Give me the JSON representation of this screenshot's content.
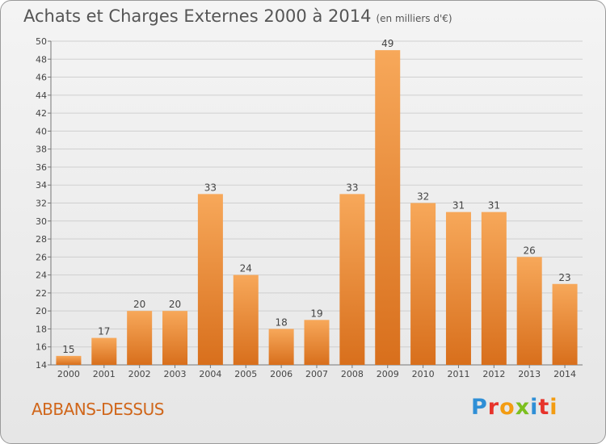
{
  "header": {
    "title": "Achats et Charges Externes 2000 à 2014",
    "subtitle": "(en milliers d'€)"
  },
  "footer": {
    "location": "ABBANS-DESSUS",
    "logo_letters": [
      "P",
      "r",
      "o",
      "x",
      "i",
      "t",
      "i"
    ],
    "logo_colors": [
      "#2f8fd6",
      "#e7332b",
      "#f39c12",
      "#7cbf1e",
      "#2f8fd6",
      "#e7332b",
      "#f39c12"
    ]
  },
  "chart_data": {
    "type": "bar",
    "categories": [
      "2000",
      "2001",
      "2002",
      "2003",
      "2004",
      "2005",
      "2006",
      "2007",
      "2008",
      "2009",
      "2010",
      "2011",
      "2012",
      "2013",
      "2014"
    ],
    "values": [
      15,
      17,
      20,
      20,
      33,
      24,
      18,
      19,
      33,
      49,
      32,
      31,
      31,
      26,
      23
    ],
    "data_labels": [
      "15",
      "17",
      "20",
      "20",
      "33",
      "24",
      "18",
      "19",
      "33",
      "49",
      "32",
      "31",
      "31",
      "26",
      "23"
    ],
    "ylim": [
      14,
      50
    ],
    "yticks": [
      "14",
      "16",
      "18",
      "20",
      "22",
      "24",
      "26",
      "28",
      "30",
      "32",
      "34",
      "36",
      "38",
      "40",
      "42",
      "44",
      "46",
      "48",
      "50"
    ],
    "grid": true,
    "bar_color_light": "#f7a85a",
    "bar_color_dark": "#d86f1c"
  }
}
